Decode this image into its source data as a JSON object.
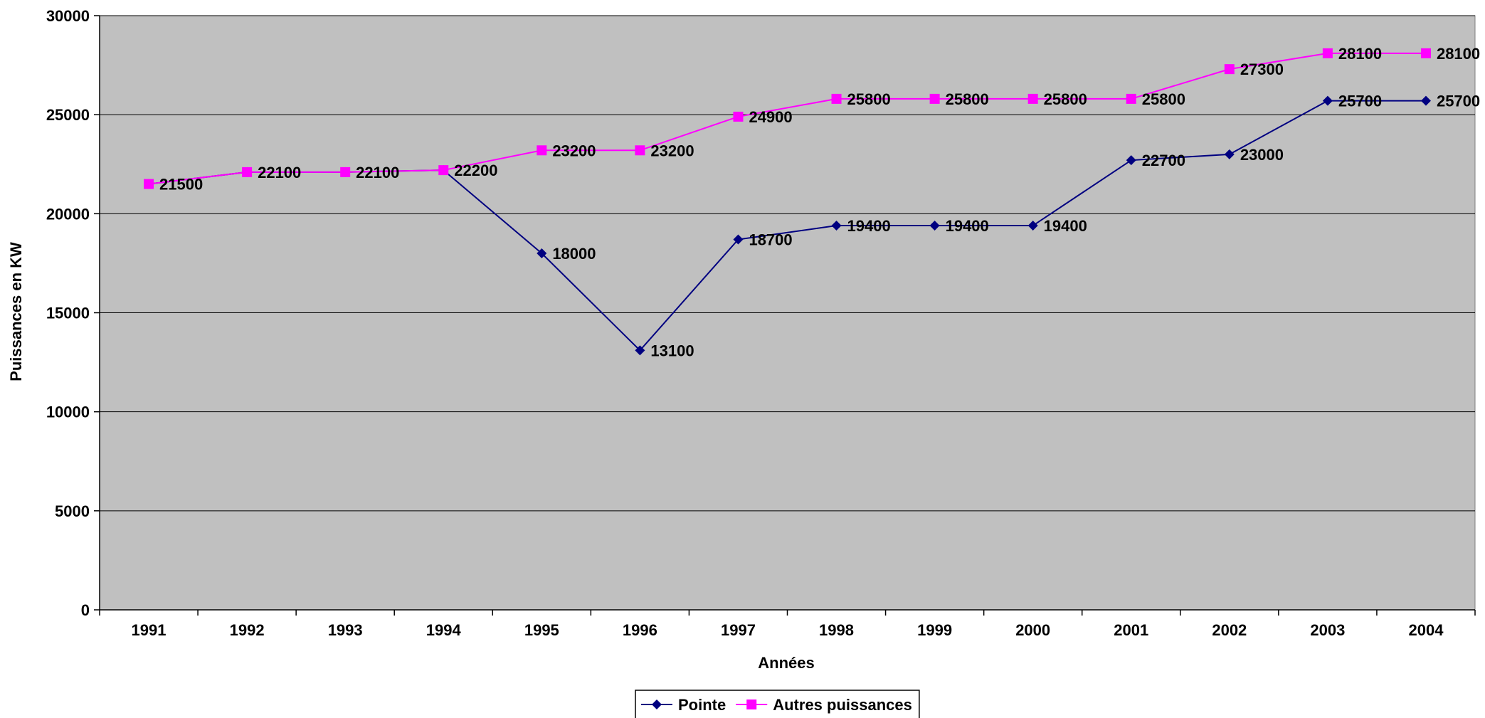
{
  "chart_data": {
    "type": "line",
    "title": "",
    "xlabel": "Années",
    "ylabel": "Puissances en KW",
    "ylim": [
      0,
      30000
    ],
    "y_ticks": [
      0,
      5000,
      10000,
      15000,
      20000,
      25000,
      30000
    ],
    "grid": "horizontal",
    "plot_background": "#C0C0C0",
    "legend_position": "bottom",
    "categories": [
      "1991",
      "1992",
      "1993",
      "1994",
      "1995",
      "1996",
      "1997",
      "1998",
      "1999",
      "2000",
      "2001",
      "2002",
      "2003",
      "2004"
    ],
    "series": [
      {
        "name": "Pointe",
        "color": "#000080",
        "marker": "diamond",
        "values": [
          21500,
          22100,
          22100,
          22200,
          18000,
          13100,
          18700,
          19400,
          19400,
          19400,
          22700,
          23000,
          25700,
          25700
        ],
        "labels": [
          "",
          "",
          "",
          "",
          "18000",
          "13100",
          "18700",
          "19400",
          "19400",
          "19400",
          "22700",
          "23000",
          "25700",
          "25700"
        ]
      },
      {
        "name": "Autres puissances",
        "color": "#FF00FF",
        "marker": "square",
        "values": [
          21500,
          22100,
          22100,
          22200,
          23200,
          23200,
          24900,
          25800,
          25800,
          25800,
          25800,
          27300,
          28100,
          28100
        ],
        "labels": [
          "21500",
          "22100",
          "22100",
          "22200",
          "23200",
          "23200",
          "24900",
          "25800",
          "25800",
          "25800",
          "25800",
          "27300",
          "28100",
          "28100"
        ]
      }
    ]
  }
}
